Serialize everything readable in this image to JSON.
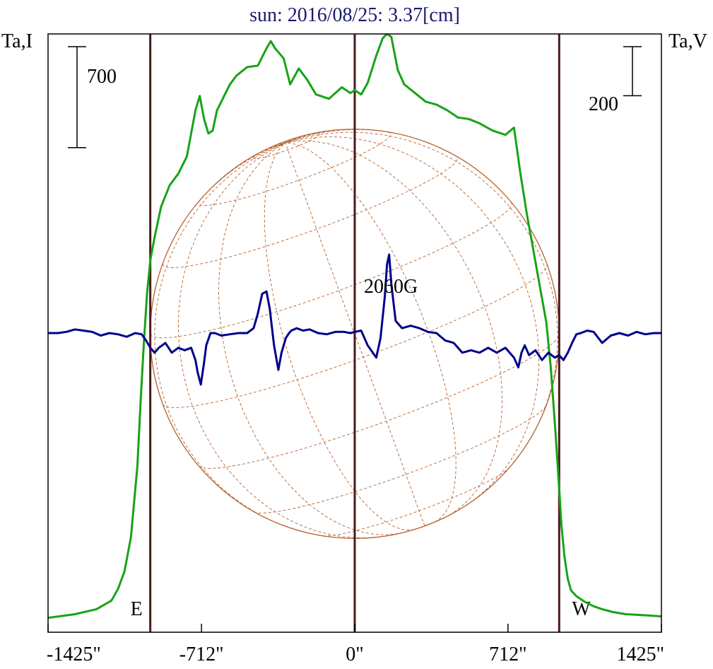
{
  "chart_data": {
    "type": "line",
    "title": "sun: 2016/08/25: 3.37[cm]",
    "left_axis_label": "Ta,I",
    "right_axis_label": "Ta,V",
    "x_unit": "arcsec",
    "xlim": [
      -1425,
      1425
    ],
    "x_ticks": [
      {
        "value": -1425,
        "label": "-1425\""
      },
      {
        "value": -712,
        "label": "-712\""
      },
      {
        "value": 0,
        "label": "0\""
      },
      {
        "value": 712,
        "label": "712\""
      },
      {
        "value": 1425,
        "label": "1425\""
      }
    ],
    "i_scale_bar": {
      "value": 700,
      "label": "700"
    },
    "v_scale_bar": {
      "value": 200,
      "label": "200"
    },
    "ylim_I": [
      -100,
      4050
    ],
    "ylim_V": [
      -1220,
      1220
    ],
    "limb_markers": [
      {
        "x": -950,
        "label": "E"
      },
      {
        "x": 0,
        "label": ""
      },
      {
        "x": 950,
        "label": "W"
      }
    ],
    "magnetic_field_label": "2060G",
    "solar_disk": {
      "radius_arcsec": 950,
      "b0_deg": 7,
      "p_deg": 20
    },
    "colors": {
      "title": "#1a1a6e",
      "intensity_I": "#17a317",
      "polarization_V": "#00008b",
      "limb_lines": "#4a1a1a",
      "disk_grid": "#b5622e",
      "axes": "#000000"
    },
    "series": [
      {
        "name": "",
        "axis": "left",
        "color": "#17a317",
        "x": [
          -1425,
          -1300,
          -1200,
          -1130,
          -1100,
          -1070,
          -1040,
          -1010,
          -995,
          -980,
          -965,
          -950,
          -930,
          -900,
          -860,
          -820,
          -780,
          -740,
          -720,
          -700,
          -680,
          -660,
          -640,
          -610,
          -580,
          -550,
          -500,
          -450,
          -410,
          -390,
          -370,
          -330,
          -300,
          -260,
          -220,
          -180,
          -120,
          -60,
          -20,
          0,
          30,
          60,
          100,
          130,
          150,
          170,
          200,
          230,
          280,
          330,
          380,
          430,
          480,
          530,
          580,
          640,
          700,
          740,
          770,
          800,
          830,
          860,
          890,
          910,
          930,
          950,
          960,
          975,
          990,
          1005,
          1030,
          1070,
          1110,
          1150,
          1200,
          1260,
          1320,
          1380,
          1425
        ],
        "y": [
          0,
          25,
          60,
          120,
          200,
          320,
          560,
          1050,
          1500,
          1900,
          2250,
          2480,
          2640,
          2850,
          3000,
          3080,
          3200,
          3520,
          3620,
          3460,
          3360,
          3380,
          3520,
          3610,
          3700,
          3760,
          3820,
          3830,
          3950,
          4000,
          3950,
          3880,
          3700,
          3810,
          3730,
          3630,
          3600,
          3680,
          3640,
          3660,
          3630,
          3710,
          3900,
          4020,
          4050,
          4030,
          3800,
          3700,
          3640,
          3580,
          3560,
          3520,
          3470,
          3460,
          3430,
          3380,
          3350,
          3400,
          3080,
          2800,
          2550,
          2300,
          2050,
          1750,
          1350,
          900,
          650,
          420,
          270,
          190,
          150,
          110,
          80,
          60,
          40,
          25,
          20,
          15,
          10
        ]
      },
      {
        "name": "",
        "axis": "right",
        "color": "#00008b",
        "x": [
          -1425,
          -1380,
          -1340,
          -1300,
          -1260,
          -1220,
          -1180,
          -1140,
          -1100,
          -1060,
          -1020,
          -990,
          -970,
          -950,
          -930,
          -910,
          -880,
          -850,
          -820,
          -790,
          -760,
          -740,
          -730,
          -715,
          -700,
          -690,
          -670,
          -650,
          -620,
          -580,
          -540,
          -500,
          -470,
          -450,
          -430,
          -410,
          -395,
          -375,
          -355,
          -340,
          -320,
          -305,
          -295,
          -270,
          -240,
          -210,
          -170,
          -130,
          -90,
          -50,
          -20,
          0,
          30,
          60,
          100,
          120,
          140,
          150,
          160,
          170,
          190,
          220,
          260,
          300,
          340,
          380,
          420,
          460,
          500,
          540,
          580,
          620,
          660,
          700,
          740,
          760,
          775,
          790,
          810,
          840,
          870,
          900,
          930,
          950,
          970,
          990,
          1010,
          1030,
          1050,
          1080,
          1110,
          1150,
          1190,
          1230,
          1270,
          1310,
          1350,
          1390,
          1425
        ],
        "y": [
          0,
          0,
          5,
          15,
          10,
          5,
          -10,
          0,
          -5,
          -15,
          0,
          -5,
          -30,
          -60,
          -80,
          -60,
          -40,
          -80,
          -60,
          -70,
          -60,
          -110,
          -160,
          -210,
          -120,
          -50,
          0,
          0,
          -10,
          -5,
          0,
          0,
          20,
          80,
          160,
          170,
          100,
          -50,
          -150,
          -80,
          -20,
          0,
          10,
          20,
          10,
          15,
          0,
          -5,
          5,
          5,
          0,
          5,
          10,
          -50,
          -100,
          -20,
          150,
          280,
          320,
          200,
          50,
          20,
          30,
          20,
          5,
          0,
          -30,
          -40,
          -80,
          -70,
          -80,
          -60,
          -80,
          -60,
          -100,
          -140,
          -80,
          -50,
          -90,
          -70,
          -110,
          -80,
          -100,
          -90,
          -110,
          -80,
          -40,
          -5,
          0,
          10,
          5,
          -40,
          -10,
          0,
          -10,
          5,
          -5,
          0,
          0
        ]
      }
    ]
  }
}
